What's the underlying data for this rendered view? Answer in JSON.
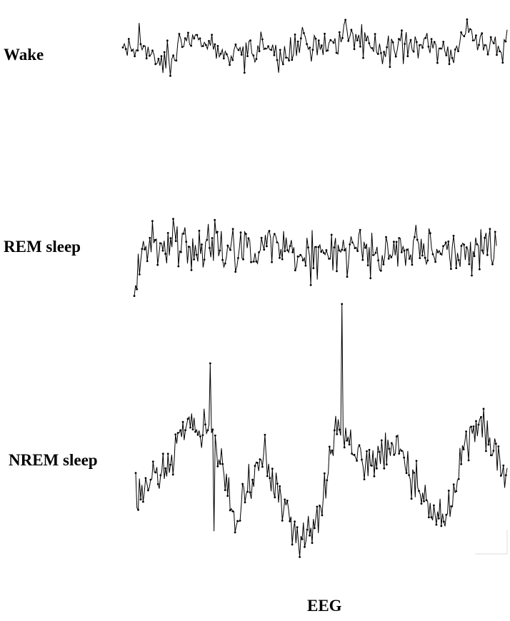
{
  "chart_data": {
    "type": "line",
    "title": "",
    "xlabel": "EEG",
    "ylabel": "",
    "grid": false,
    "legend": "none",
    "series": [
      {
        "name": "Wake",
        "color": "#000000",
        "envelope": [
          0.0,
          0.05,
          -0.25,
          0.15,
          0.2,
          0.0,
          -0.1,
          0.15,
          -0.15,
          0.1,
          0.0,
          0.2,
          0.05,
          -0.05,
          0.1,
          0.05,
          -0.1,
          0.25,
          0.0,
          0.1
        ]
      },
      {
        "name": "REM sleep",
        "color": "#000000",
        "envelope": [
          -0.3,
          0.0,
          0.1,
          0.0,
          0.05,
          0.0,
          -0.05,
          0.0,
          0.05,
          0.0,
          -0.05,
          0.0,
          0.05,
          -0.1,
          -0.05,
          0.0,
          0.05,
          0.0,
          0.05,
          -0.05
        ]
      },
      {
        "name": "NREM sleep",
        "color": "#000000",
        "envelope": [
          -0.4,
          -0.3,
          -0.1,
          0.4,
          0.6,
          0.5,
          0.1,
          -0.8,
          -0.3,
          0.1,
          -0.4,
          -1.0,
          -1.1,
          -0.6,
          0.5,
          0.3,
          0.0,
          0.1,
          0.3,
          -0.1,
          -0.4,
          -0.8,
          -0.6,
          0.3,
          0.6,
          0.2,
          -0.2
        ]
      }
    ]
  }
}
